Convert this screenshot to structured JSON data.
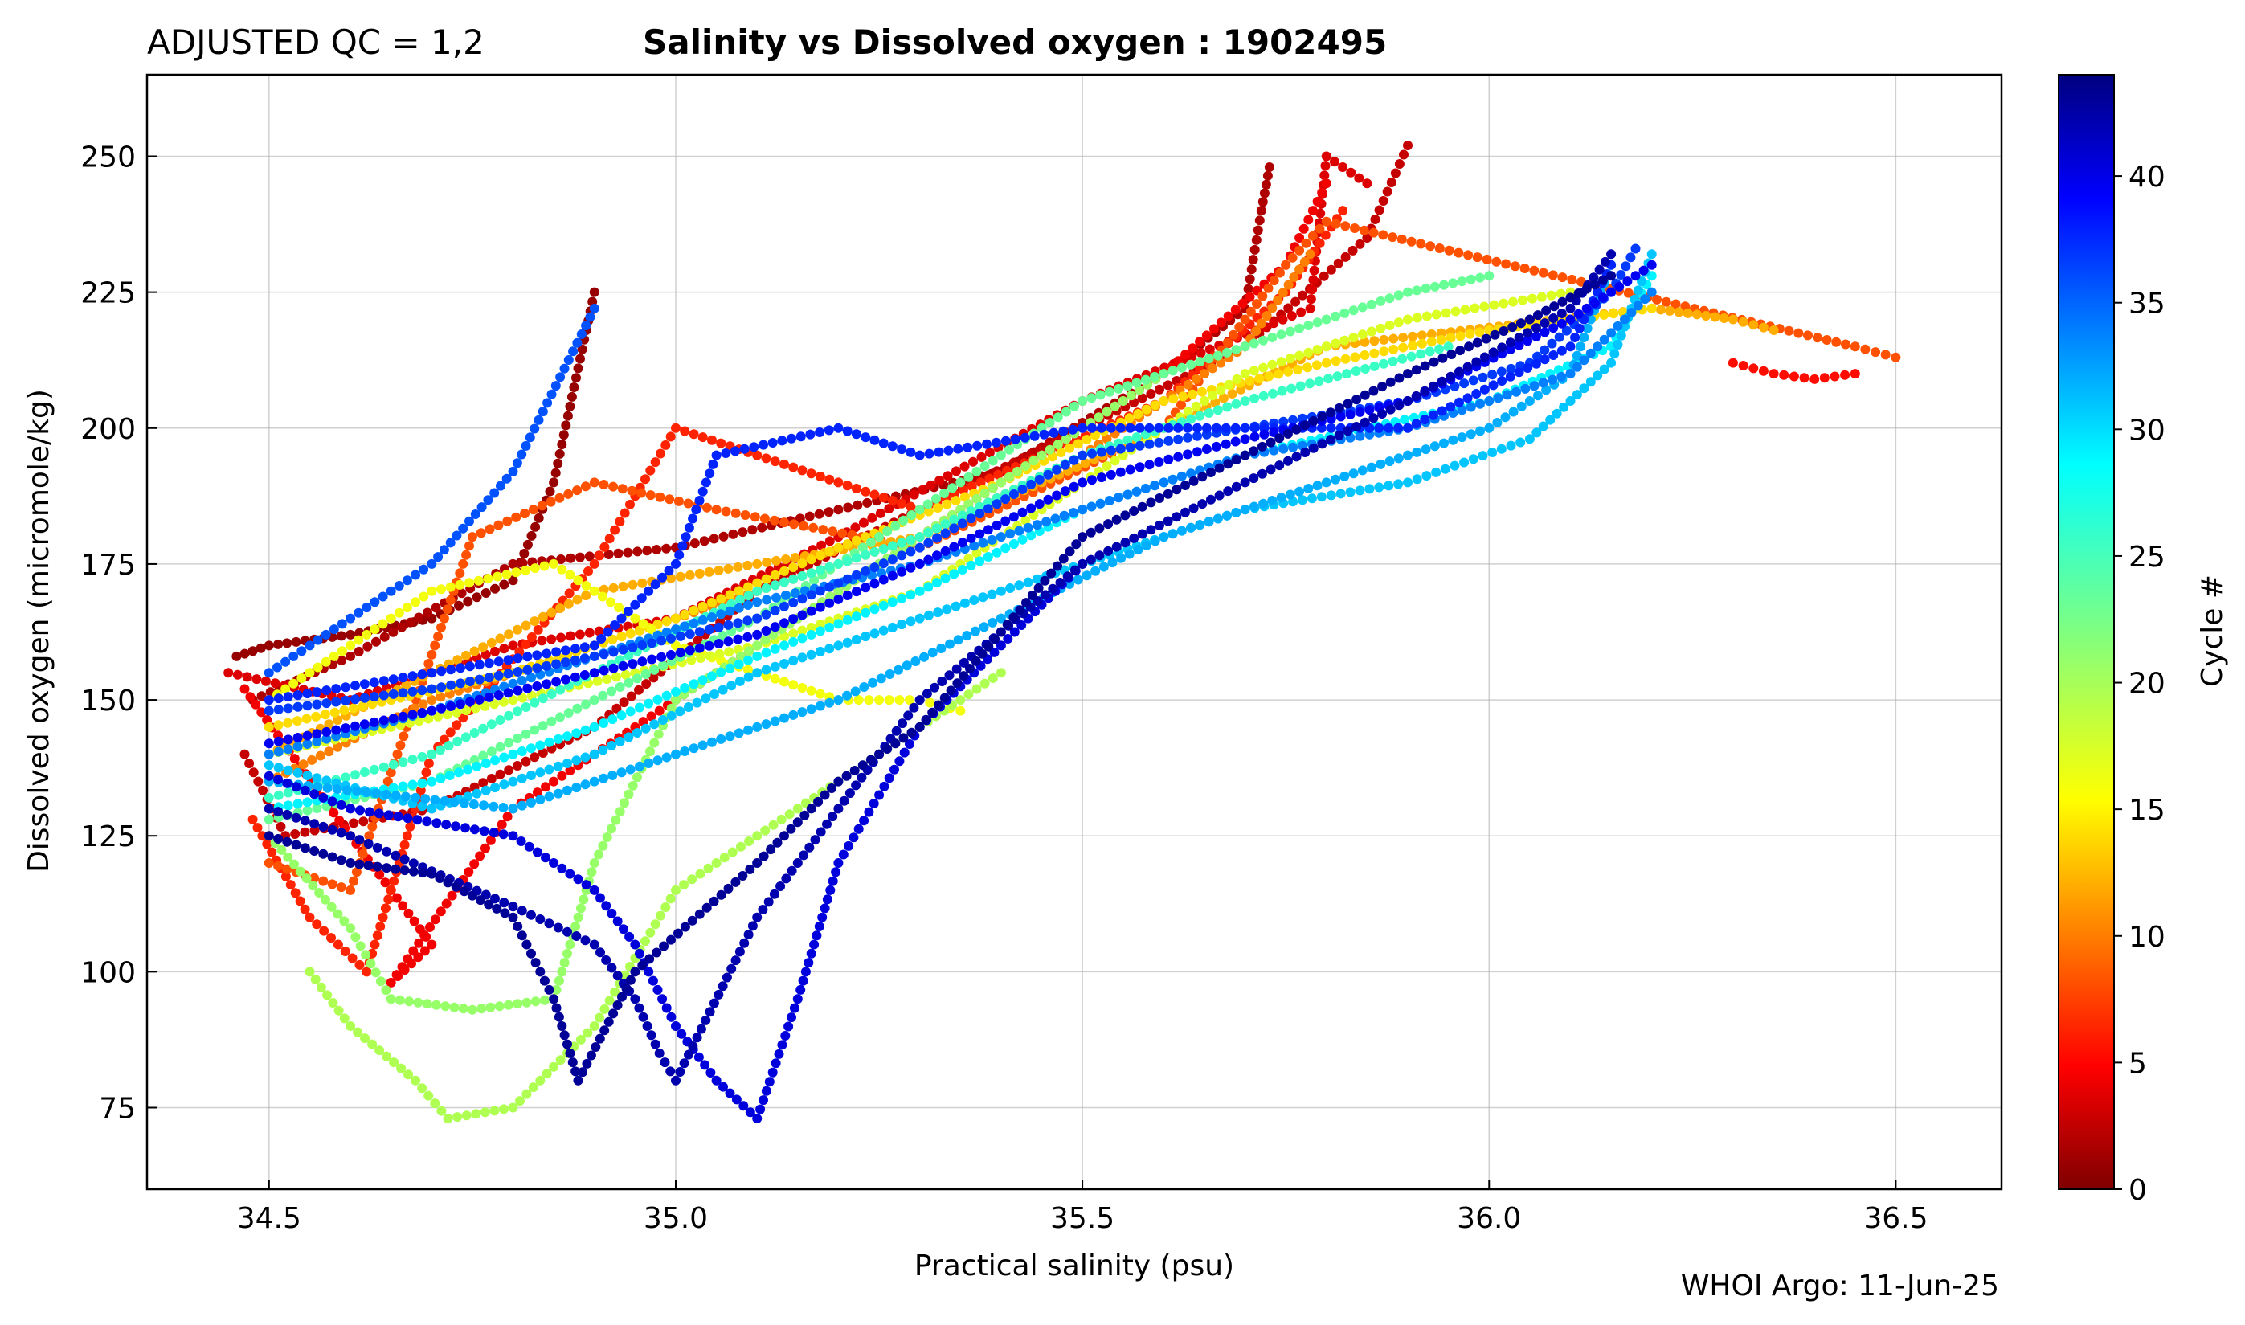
{
  "header": {
    "qc_label": "ADJUSTED QC = 1,2",
    "title": "Salinity vs Dissolved oxygen : 1902495"
  },
  "footer": {
    "credit": "WHOI Argo: 11-Jun-25"
  },
  "colorbar": {
    "label": "Cycle #",
    "ticks": [
      0,
      5,
      10,
      15,
      20,
      25,
      30,
      35,
      40
    ],
    "min": 0,
    "max": 44,
    "colormap": "jet"
  },
  "chart_data": {
    "type": "scatter",
    "title": "Salinity vs Dissolved oxygen : 1902495",
    "xlabel": "Practical salinity  (psu)",
    "ylabel": "Dissolved oxygen  (micromole/kg)",
    "xlim": [
      34.35,
      36.63
    ],
    "ylim": [
      60,
      265
    ],
    "xticks": [
      "34.5",
      "35.0",
      "35.5",
      "36.0",
      "36.5"
    ],
    "yticks": [
      "75",
      "100",
      "125",
      "150",
      "175",
      "200",
      "225",
      "250"
    ],
    "grid": true,
    "color_by": "cycle",
    "series": [
      {
        "cycle": 1,
        "points": [
          [
            34.46,
            158
          ],
          [
            34.5,
            160
          ],
          [
            34.6,
            162
          ],
          [
            34.7,
            165
          ],
          [
            34.8,
            172
          ],
          [
            34.85,
            190
          ],
          [
            34.9,
            225
          ]
        ]
      },
      {
        "cycle": 2,
        "points": [
          [
            34.48,
            150
          ],
          [
            34.6,
            158
          ],
          [
            34.8,
            175
          ],
          [
            35.0,
            178
          ],
          [
            35.2,
            185
          ],
          [
            35.4,
            192
          ],
          [
            35.6,
            210
          ],
          [
            35.7,
            222
          ],
          [
            35.72,
            240
          ],
          [
            35.73,
            248
          ]
        ]
      },
      {
        "cycle": 3,
        "points": [
          [
            34.47,
            140
          ],
          [
            34.52,
            125
          ],
          [
            34.7,
            130
          ],
          [
            34.9,
            145
          ],
          [
            35.1,
            170
          ],
          [
            35.3,
            185
          ],
          [
            35.5,
            200
          ],
          [
            35.7,
            215
          ],
          [
            35.85,
            235
          ],
          [
            35.9,
            252
          ]
        ]
      },
      {
        "cycle": 4,
        "points": [
          [
            34.45,
            155
          ],
          [
            34.6,
            150
          ],
          [
            34.8,
            160
          ],
          [
            35.0,
            165
          ],
          [
            35.2,
            180
          ],
          [
            35.5,
            205
          ],
          [
            35.78,
            222
          ],
          [
            35.8,
            250
          ],
          [
            35.85,
            245
          ]
        ]
      },
      {
        "cycle": 5,
        "points": [
          [
            34.47,
            152
          ],
          [
            34.6,
            125
          ],
          [
            34.7,
            105
          ],
          [
            34.65,
            98
          ],
          [
            34.8,
            130
          ],
          [
            35.0,
            150
          ],
          [
            35.3,
            180
          ],
          [
            35.6,
            210
          ],
          [
            35.75,
            230
          ],
          [
            35.8,
            245
          ]
        ]
      },
      {
        "cycle": 6,
        "points": [
          [
            36.3,
            212
          ],
          [
            36.35,
            210
          ],
          [
            36.4,
            209
          ],
          [
            36.45,
            210
          ]
        ]
      },
      {
        "cycle": 7,
        "points": [
          [
            34.48,
            128
          ],
          [
            34.55,
            110
          ],
          [
            34.62,
            100
          ],
          [
            34.7,
            140
          ],
          [
            34.9,
            175
          ],
          [
            35.0,
            200
          ],
          [
            35.1,
            195
          ],
          [
            35.3,
            185
          ],
          [
            35.6,
            205
          ],
          [
            35.75,
            225
          ],
          [
            35.82,
            240
          ]
        ]
      },
      {
        "cycle": 9,
        "points": [
          [
            34.5,
            120
          ],
          [
            34.6,
            115
          ],
          [
            34.75,
            180
          ],
          [
            34.9,
            190
          ],
          [
            35.05,
            185
          ],
          [
            35.3,
            178
          ],
          [
            35.6,
            200
          ],
          [
            35.75,
            230
          ],
          [
            35.8,
            238
          ],
          [
            36.45,
            215
          ],
          [
            36.5,
            213
          ]
        ]
      },
      {
        "cycle": 11,
        "points": [
          [
            34.5,
            135
          ],
          [
            34.7,
            150
          ],
          [
            34.9,
            160
          ],
          [
            35.1,
            170
          ],
          [
            35.3,
            180
          ],
          [
            35.5,
            195
          ],
          [
            35.7,
            215
          ],
          [
            35.78,
            232
          ]
        ]
      },
      {
        "cycle": 13,
        "points": [
          [
            34.5,
            140
          ],
          [
            34.7,
            155
          ],
          [
            34.9,
            170
          ],
          [
            35.1,
            175
          ],
          [
            35.3,
            180
          ],
          [
            35.6,
            200
          ],
          [
            35.8,
            215
          ],
          [
            36.2,
            222
          ],
          [
            36.3,
            220
          ],
          [
            36.35,
            218
          ]
        ]
      },
      {
        "cycle": 15,
        "points": [
          [
            34.5,
            145
          ],
          [
            34.8,
            155
          ],
          [
            35.0,
            165
          ],
          [
            35.2,
            178
          ],
          [
            35.4,
            190
          ],
          [
            35.6,
            205
          ],
          [
            35.8,
            212
          ],
          [
            36.0,
            218
          ],
          [
            36.2,
            222
          ]
        ]
      },
      {
        "cycle": 17,
        "points": [
          [
            34.5,
            150
          ],
          [
            34.7,
            170
          ],
          [
            34.85,
            175
          ],
          [
            35.0,
            160
          ],
          [
            35.2,
            150
          ],
          [
            35.3,
            150
          ],
          [
            35.35,
            148
          ]
        ]
      },
      {
        "cycle": 18,
        "points": [
          [
            34.5,
            140
          ],
          [
            34.8,
            150
          ],
          [
            35.1,
            160
          ],
          [
            35.3,
            170
          ],
          [
            35.5,
            190
          ],
          [
            35.7,
            210
          ],
          [
            35.9,
            220
          ],
          [
            36.1,
            225
          ]
        ]
      },
      {
        "cycle": 20,
        "points": [
          [
            34.55,
            100
          ],
          [
            34.6,
            90
          ],
          [
            34.68,
            80
          ],
          [
            34.72,
            73
          ],
          [
            34.8,
            75
          ],
          [
            34.9,
            90
          ],
          [
            35.0,
            115
          ],
          [
            35.1,
            125
          ],
          [
            35.2,
            135
          ],
          [
            35.4,
            155
          ]
        ]
      },
      {
        "cycle": 21,
        "points": [
          [
            34.5,
            125
          ],
          [
            34.6,
            108
          ],
          [
            34.65,
            95
          ],
          [
            34.75,
            93
          ],
          [
            34.85,
            95
          ],
          [
            34.9,
            120
          ],
          [
            35.0,
            150
          ],
          [
            35.2,
            170
          ],
          [
            35.4,
            190
          ],
          [
            35.6,
            210
          ]
        ]
      },
      {
        "cycle": 23,
        "points": [
          [
            34.5,
            128
          ],
          [
            34.7,
            135
          ],
          [
            34.9,
            150
          ],
          [
            35.1,
            165
          ],
          [
            35.3,
            185
          ],
          [
            35.5,
            205
          ],
          [
            35.7,
            215
          ],
          [
            35.9,
            225
          ],
          [
            36.0,
            228
          ]
        ]
      },
      {
        "cycle": 25,
        "points": [
          [
            34.5,
            132
          ],
          [
            34.7,
            140
          ],
          [
            34.9,
            155
          ],
          [
            35.1,
            170
          ],
          [
            35.3,
            180
          ],
          [
            35.5,
            195
          ],
          [
            35.7,
            205
          ],
          [
            35.95,
            215
          ]
        ]
      },
      {
        "cycle": 28,
        "points": [
          [
            34.5,
            130
          ],
          [
            34.7,
            135
          ],
          [
            34.9,
            145
          ],
          [
            35.1,
            158
          ],
          [
            35.3,
            170
          ],
          [
            35.5,
            185
          ],
          [
            35.7,
            195
          ],
          [
            36.0,
            205
          ],
          [
            36.15,
            215
          ],
          [
            36.2,
            228
          ]
        ]
      },
      {
        "cycle": 30,
        "points": [
          [
            34.5,
            138
          ],
          [
            34.7,
            130
          ],
          [
            34.9,
            140
          ],
          [
            35.1,
            155
          ],
          [
            35.3,
            165
          ],
          [
            35.5,
            175
          ],
          [
            35.7,
            185
          ],
          [
            35.9,
            190
          ],
          [
            36.05,
            198
          ],
          [
            36.15,
            212
          ],
          [
            36.2,
            232
          ]
        ]
      },
      {
        "cycle": 31,
        "points": [
          [
            34.5,
            135
          ],
          [
            34.8,
            130
          ],
          [
            35.0,
            140
          ],
          [
            35.2,
            150
          ],
          [
            35.4,
            165
          ],
          [
            35.6,
            180
          ],
          [
            35.8,
            190
          ],
          [
            36.0,
            200
          ],
          [
            36.1,
            210
          ],
          [
            36.15,
            230
          ]
        ]
      },
      {
        "cycle": 33,
        "points": [
          [
            34.5,
            140
          ],
          [
            34.7,
            148
          ],
          [
            34.9,
            158
          ],
          [
            35.1,
            168
          ],
          [
            35.3,
            175
          ],
          [
            35.5,
            185
          ],
          [
            35.7,
            195
          ],
          [
            35.9,
            200
          ],
          [
            36.1,
            210
          ],
          [
            36.2,
            225
          ]
        ]
      },
      {
        "cycle": 35,
        "points": [
          [
            34.5,
            155
          ],
          [
            34.6,
            165
          ],
          [
            34.7,
            175
          ],
          [
            34.8,
            192
          ],
          [
            34.9,
            222
          ]
        ]
      },
      {
        "cycle": 36,
        "points": [
          [
            34.5,
            148
          ],
          [
            34.7,
            152
          ],
          [
            34.9,
            158
          ],
          [
            35.1,
            165
          ],
          [
            35.3,
            178
          ],
          [
            35.5,
            195
          ],
          [
            35.7,
            200
          ],
          [
            35.9,
            205
          ],
          [
            36.05,
            212
          ],
          [
            36.15,
            225
          ],
          [
            36.18,
            233
          ]
        ]
      },
      {
        "cycle": 37,
        "points": [
          [
            34.5,
            150
          ],
          [
            34.7,
            155
          ],
          [
            34.9,
            160
          ],
          [
            35.0,
            175
          ],
          [
            35.05,
            195
          ],
          [
            35.2,
            200
          ],
          [
            35.3,
            195
          ],
          [
            35.5,
            200
          ],
          [
            35.7,
            200
          ],
          [
            35.9,
            200
          ],
          [
            36.1,
            215
          ],
          [
            36.15,
            230
          ]
        ]
      },
      {
        "cycle": 39,
        "points": [
          [
            34.5,
            142
          ],
          [
            34.7,
            148
          ],
          [
            34.9,
            155
          ],
          [
            35.1,
            162
          ],
          [
            35.3,
            175
          ],
          [
            35.5,
            190
          ],
          [
            35.7,
            198
          ],
          [
            35.9,
            205
          ],
          [
            36.1,
            220
          ],
          [
            36.2,
            230
          ]
        ]
      },
      {
        "cycle": 40,
        "points": [
          [
            34.5,
            136
          ],
          [
            34.6,
            130
          ],
          [
            34.8,
            125
          ],
          [
            34.9,
            115
          ],
          [
            34.95,
            105
          ],
          [
            35.0,
            90
          ],
          [
            35.05,
            80
          ],
          [
            35.1,
            73
          ],
          [
            35.15,
            95
          ],
          [
            35.2,
            120
          ],
          [
            35.3,
            145
          ],
          [
            35.5,
            175
          ]
        ]
      },
      {
        "cycle": 42,
        "points": [
          [
            34.5,
            130
          ],
          [
            34.6,
            125
          ],
          [
            34.8,
            112
          ],
          [
            34.9,
            105
          ],
          [
            34.95,
            95
          ],
          [
            34.98,
            85
          ],
          [
            35.0,
            80
          ],
          [
            35.1,
            110
          ],
          [
            35.2,
            130
          ],
          [
            35.3,
            150
          ],
          [
            35.5,
            175
          ],
          [
            35.7,
            190
          ],
          [
            35.9,
            205
          ],
          [
            36.1,
            222
          ],
          [
            36.15,
            232
          ]
        ]
      },
      {
        "cycle": 43,
        "points": [
          [
            34.5,
            125
          ],
          [
            34.6,
            120
          ],
          [
            34.7,
            118
          ],
          [
            34.8,
            110
          ],
          [
            34.85,
            95
          ],
          [
            34.88,
            80
          ],
          [
            34.95,
            100
          ],
          [
            35.1,
            120
          ],
          [
            35.2,
            135
          ],
          [
            35.3,
            145
          ],
          [
            35.5,
            180
          ],
          [
            35.7,
            195
          ],
          [
            35.9,
            210
          ],
          [
            36.05,
            220
          ],
          [
            36.15,
            228
          ]
        ]
      }
    ]
  }
}
